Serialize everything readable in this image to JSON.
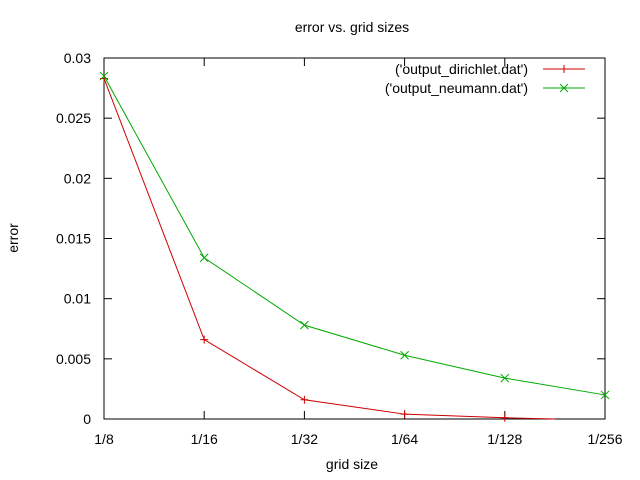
{
  "chart_data": {
    "type": "line",
    "title": "error vs. grid sizes",
    "xlabel": "grid size",
    "ylabel": "error",
    "categories": [
      "1/8",
      "1/16",
      "1/32",
      "1/64",
      "1/128",
      "1/256"
    ],
    "ylim": [
      0,
      0.03
    ],
    "yticks": [
      {
        "value": 0,
        "label": "0"
      },
      {
        "value": 0.005,
        "label": "0.005"
      },
      {
        "value": 0.01,
        "label": "0.01"
      },
      {
        "value": 0.015,
        "label": "0.015"
      },
      {
        "value": 0.02,
        "label": "0.02"
      },
      {
        "value": 0.025,
        "label": "0.025"
      },
      {
        "value": 0.03,
        "label": "0.03"
      }
    ],
    "grid": false,
    "legend_position": "top-right",
    "series": [
      {
        "name": "('output_dirichlet.dat')",
        "color": "#cc0000",
        "marker": "plus",
        "x": [
          0,
          1,
          2,
          3,
          4
        ],
        "values": [
          0.0283,
          0.0066,
          0.0016,
          0.0004,
          0.0001
        ],
        "line_end_x": 4.5,
        "line_end_y": 0.0
      },
      {
        "name": "('output_neumann.dat')",
        "color": "#00aa00",
        "marker": "cross",
        "x": [
          0,
          1,
          2,
          3,
          4,
          5
        ],
        "values": [
          0.0285,
          0.0134,
          0.0078,
          0.0053,
          0.0034,
          0.002
        ]
      }
    ]
  }
}
